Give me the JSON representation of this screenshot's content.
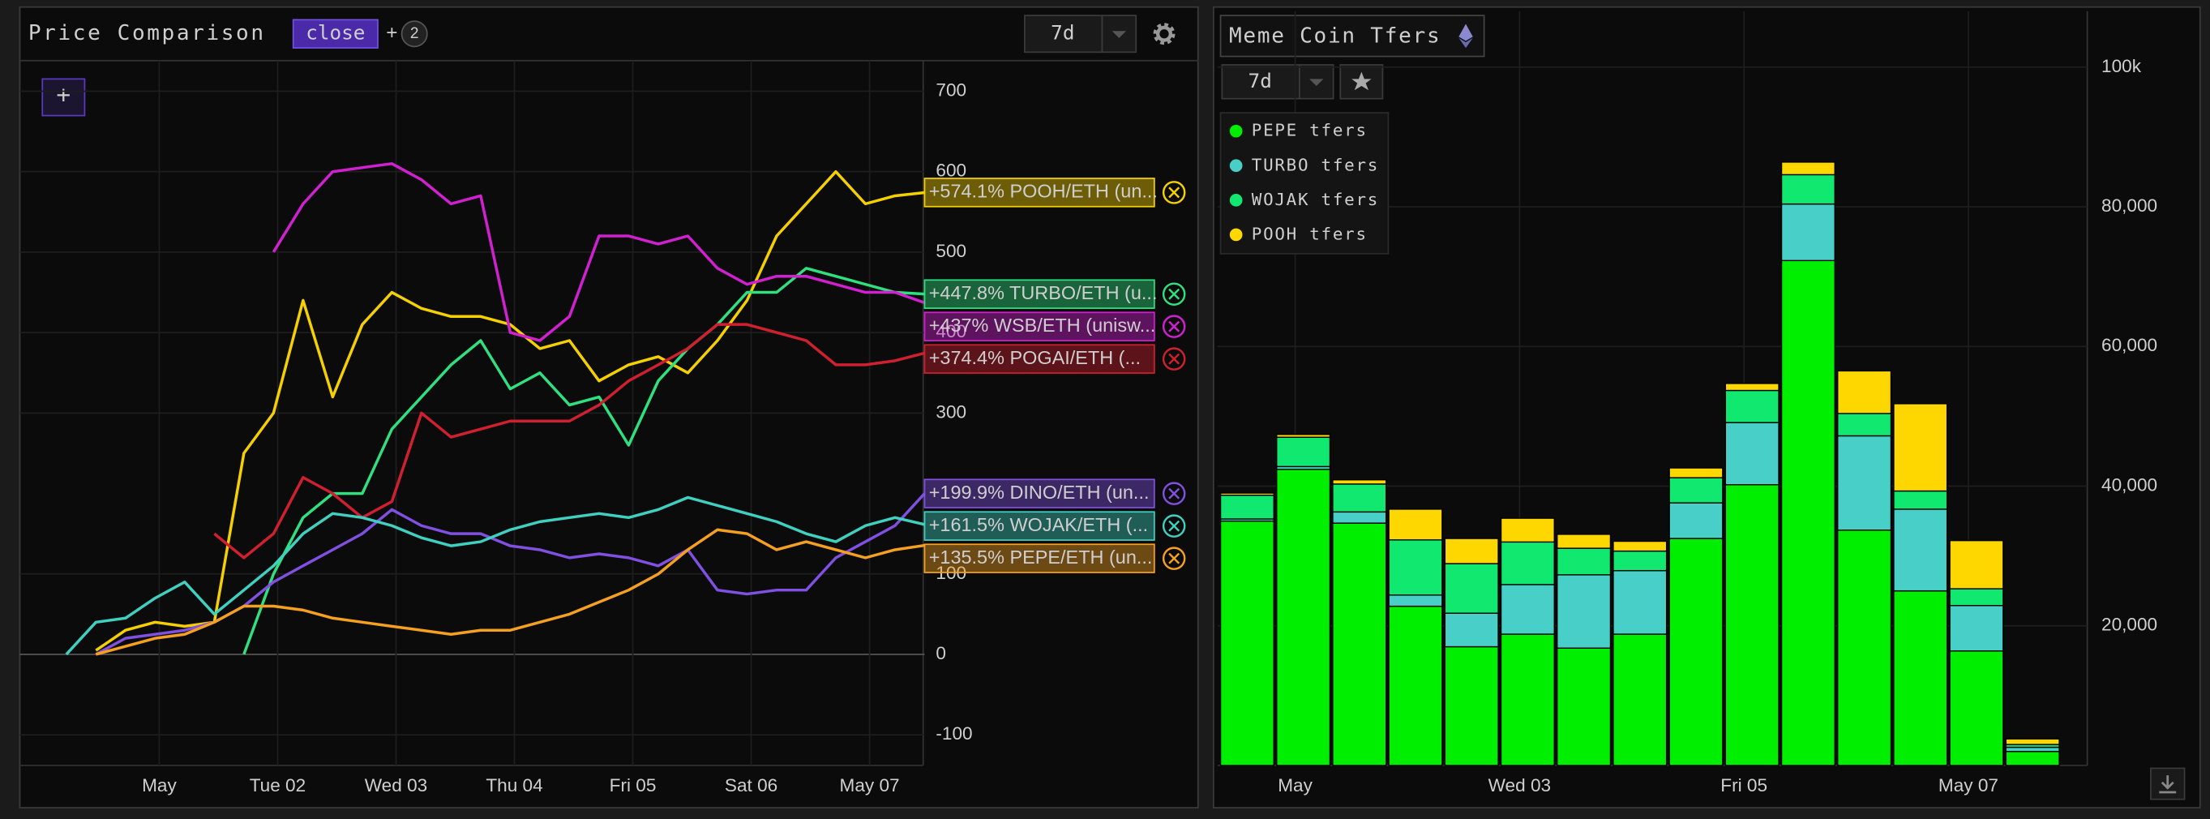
{
  "chart_data": [
    {
      "type": "line",
      "title": "Price Comparison",
      "metric": "close",
      "add_metric": "+",
      "metric_count": "2",
      "range": "7d",
      "add_button": "+",
      "xtick_labels": [
        "May",
        "Tue 02",
        "Wed 03",
        "Thu 04",
        "Fri 05",
        "Sat 06",
        "May 07"
      ],
      "ylim": [
        -138,
        738
      ],
      "yticks": [
        -100,
        0,
        100,
        300,
        400,
        500,
        600,
        700
      ],
      "grid": true,
      "series": [
        {
          "name": "+574.1% POOH/ETH (un...",
          "color": "#f5d000",
          "values": [
            null,
            5,
            30,
            40,
            35,
            40,
            250,
            300,
            440,
            320,
            410,
            450,
            430,
            420,
            420,
            410,
            380,
            390,
            340,
            360,
            370,
            350,
            390,
            440,
            520,
            560,
            600,
            560,
            570,
            574.1
          ]
        },
        {
          "name": "+447.8% TURBO/ETH (u...",
          "color": "#30e080",
          "values": [
            null,
            null,
            null,
            null,
            null,
            null,
            0,
            100,
            170,
            200,
            200,
            280,
            320,
            360,
            390,
            330,
            350,
            310,
            320,
            260,
            340,
            380,
            410,
            450,
            450,
            480,
            470,
            460,
            450,
            447.8
          ]
        },
        {
          "name": "+437% WSB/ETH (unisw...",
          "color": "#d020d0",
          "values": [
            null,
            null,
            null,
            null,
            null,
            null,
            null,
            500,
            560,
            600,
            605,
            610,
            590,
            560,
            570,
            400,
            390,
            420,
            520,
            520,
            510,
            520,
            480,
            460,
            470,
            470,
            460,
            450,
            450,
            437
          ]
        },
        {
          "name": "+374.4% POGAI/ETH (...",
          "color": "#d02030",
          "values": [
            null,
            null,
            null,
            null,
            null,
            150,
            120,
            150,
            220,
            200,
            170,
            190,
            300,
            270,
            280,
            290,
            290,
            290,
            310,
            340,
            360,
            380,
            410,
            410,
            400,
            390,
            360,
            360,
            365,
            374.4
          ]
        },
        {
          "name": "+199.9% DINO/ETH (un...",
          "color": "#8050e0",
          "values": [
            null,
            0,
            20,
            25,
            30,
            40,
            60,
            90,
            110,
            130,
            150,
            180,
            160,
            150,
            150,
            135,
            130,
            120,
            125,
            120,
            110,
            130,
            80,
            75,
            80,
            80,
            120,
            140,
            160,
            199.9
          ]
        },
        {
          "name": "+161.5% WOJAK/ETH (...",
          "color": "#40d0c0",
          "values": [
            0,
            40,
            45,
            70,
            90,
            50,
            80,
            110,
            150,
            175,
            170,
            160,
            145,
            135,
            140,
            155,
            165,
            170,
            175,
            170,
            180,
            195,
            185,
            175,
            165,
            150,
            140,
            160,
            170,
            161.5
          ]
        },
        {
          "name": "+135.5% PEPE/ETH (un...",
          "color": "#f5a020",
          "values": [
            null,
            0,
            10,
            20,
            25,
            40,
            60,
            60,
            55,
            45,
            40,
            35,
            30,
            25,
            30,
            30,
            40,
            50,
            65,
            80,
            100,
            130,
            155,
            150,
            130,
            140,
            130,
            120,
            130,
            135.5
          ]
        }
      ]
    },
    {
      "type": "bar",
      "stacked": true,
      "title": "Meme Coin Tfers",
      "range": "7d",
      "xtick_labels": [
        "May",
        "Wed 03",
        "Fri 05",
        "May 07"
      ],
      "ylim": [
        0,
        108000
      ],
      "yticks": [
        {
          "value": 20000,
          "label": "20,000"
        },
        {
          "value": 40000,
          "label": "40,000"
        },
        {
          "value": 60000,
          "label": "60,000"
        },
        {
          "value": 80000,
          "label": "80,000"
        },
        {
          "value": 100000,
          "label": "100k"
        }
      ],
      "series": [
        {
          "name": "PEPE tfers",
          "color": "#00ee00",
          "values": [
            35000,
            42400,
            34700,
            22800,
            17000,
            18800,
            16800,
            18800,
            32500,
            40200,
            72300,
            33700,
            25000,
            16400,
            2000
          ]
        },
        {
          "name": "TURBO tfers",
          "color": "#48d0c8",
          "values": [
            300,
            400,
            1600,
            1600,
            4800,
            7100,
            10500,
            9100,
            5100,
            8900,
            8100,
            13500,
            11700,
            6500,
            600
          ]
        },
        {
          "name": "WOJAK tfers",
          "color": "#10e870",
          "values": [
            3400,
            4200,
            4000,
            7900,
            7100,
            6100,
            3800,
            2800,
            3600,
            4600,
            4200,
            3200,
            2600,
            2400,
            400
          ]
        },
        {
          "name": "POOH tfers",
          "color": "#ffd700",
          "values": [
            300,
            400,
            600,
            4400,
            3600,
            3400,
            2000,
            1400,
            1400,
            1000,
            1800,
            6100,
            12500,
            6900,
            800
          ]
        }
      ]
    }
  ]
}
